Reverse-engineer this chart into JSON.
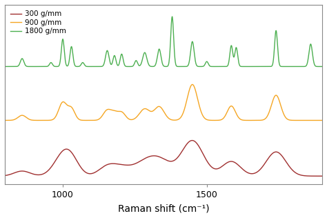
{
  "xlabel": "Raman shift (cm⁻¹)",
  "xlim": [
    800,
    1900
  ],
  "xticks": [
    1000,
    1500
  ],
  "legend_labels": [
    "300 g/mm",
    "900 g/mm",
    "1800 g/mm"
  ],
  "colors": [
    "#A03030",
    "#F5A623",
    "#4CAF50"
  ],
  "background": "#FFFFFF",
  "linewidth": 1.0,
  "frame_color": "#888888"
}
